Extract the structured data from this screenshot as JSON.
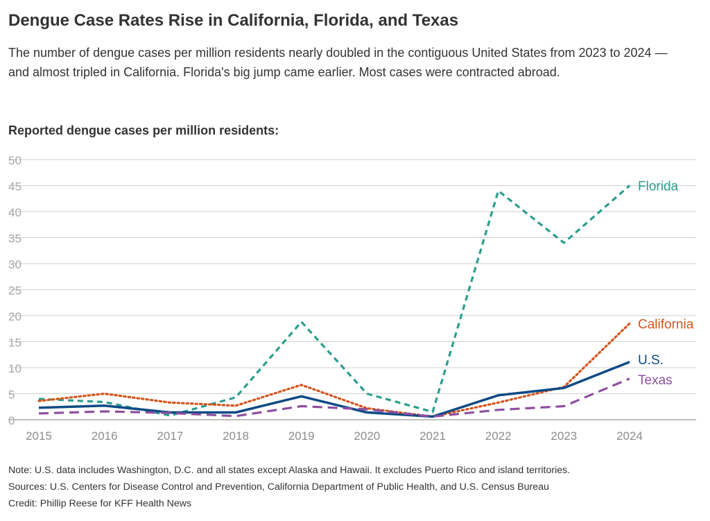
{
  "title": "Dengue Case Rates Rise in California, Florida, and Texas",
  "subtitle": "The number of dengue cases per million residents nearly doubled in the contiguous United States from 2023 to 2024 — and almost tripled in California. Florida's big jump came earlier. Most cases were contracted abroad.",
  "chart_heading": "Reported dengue cases per million residents:",
  "chart_data": {
    "type": "line",
    "x": [
      2015,
      2016,
      2017,
      2018,
      2019,
      2020,
      2021,
      2022,
      2023,
      2024
    ],
    "ylim": [
      0,
      50
    ],
    "yticks": [
      "0",
      "5",
      "10",
      "15",
      "20",
      "25",
      "30",
      "35",
      "40",
      "45",
      "50"
    ],
    "xticks": [
      "2015",
      "2016",
      "2017",
      "2018",
      "2019",
      "2020",
      "2021",
      "2022",
      "2023",
      "2024"
    ],
    "grid": true,
    "legend": "direct labels at line ends (right)",
    "series": [
      {
        "name": "Florida",
        "color": "#2a9d8f",
        "dash": "dashed",
        "values": [
          4.0,
          3.4,
          0.8,
          4.3,
          18.8,
          5.0,
          1.5,
          44.0,
          34.0,
          45.0
        ]
      },
      {
        "name": "California",
        "color": "#d4541c",
        "dash": "dotted",
        "values": [
          3.6,
          5.0,
          3.3,
          2.7,
          6.7,
          2.2,
          0.6,
          3.3,
          6.3,
          18.5
        ]
      },
      {
        "name": "U.S.",
        "color": "#0d4a85",
        "dash": "solid",
        "values": [
          2.3,
          2.7,
          1.4,
          1.4,
          4.5,
          1.4,
          0.6,
          4.7,
          6.1,
          11.1
        ]
      },
      {
        "name": "Texas",
        "color": "#8e4fa0",
        "dash": "longdash",
        "values": [
          1.2,
          1.6,
          1.3,
          0.7,
          2.6,
          2.0,
          0.6,
          1.9,
          2.6,
          7.9
        ]
      }
    ]
  },
  "notes": {
    "note": "Note: U.S. data includes Washington, D.C. and all states except Alaska and Hawaii. It excludes Puerto Rico and island territories.",
    "sources": "Sources: U.S. Centers for Disease Control and Prevention, California Department of Public Health, and U.S. Census Bureau",
    "credit": "Credit: Phillip Reese for KFF Health News"
  }
}
